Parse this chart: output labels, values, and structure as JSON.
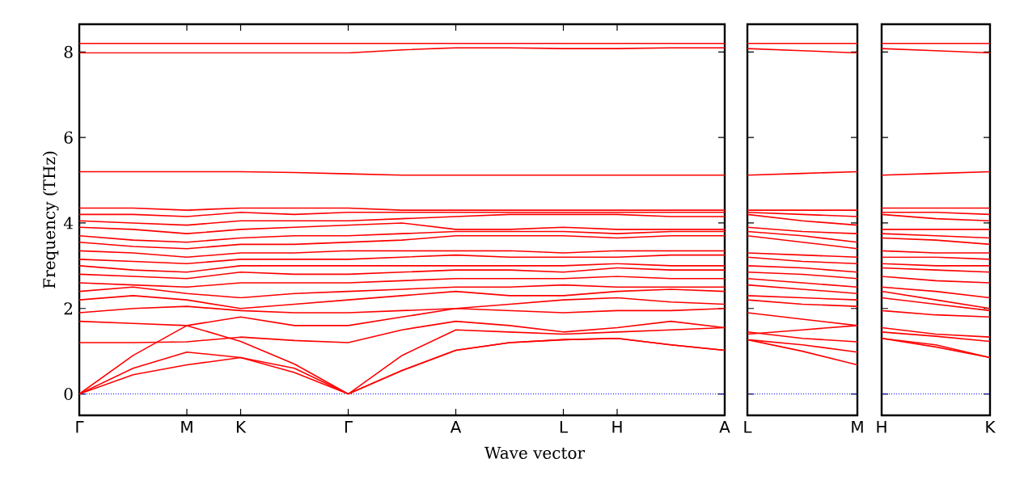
{
  "chart_data": [
    {
      "type": "line",
      "xlabel": "Wave vector",
      "ylabel": "Frequency (THz)",
      "categories": [
        "Γ",
        null,
        "M",
        "K",
        null,
        "Γ",
        null,
        "A",
        null,
        "L",
        "H",
        null,
        "A"
      ],
      "ylim": [
        -0.5,
        8.65
      ],
      "yticks": [
        0,
        2,
        4,
        6,
        8
      ],
      "ref_lines": [
        {
          "axis": "y",
          "value": 0,
          "color": "#0000ff",
          "line_style": "dotted"
        }
      ],
      "series": [
        {
          "color": "#ff0000",
          "values": [
            0,
            0.45,
            0.68,
            0.85,
            0.5,
            0,
            0.55,
            1.02,
            1.2,
            1.27,
            1.3,
            1.15,
            1.02
          ]
        },
        {
          "color": "#ff0000",
          "values": [
            0,
            0.6,
            0.98,
            0.85,
            0.6,
            0,
            0.55,
            1.02,
            1.2,
            1.27,
            1.3,
            1.15,
            1.02
          ]
        },
        {
          "color": "#ff0000",
          "values": [
            0,
            0.9,
            1.6,
            1.23,
            0.7,
            0,
            0.9,
            1.5,
            1.45,
            1.4,
            1.45,
            1.5,
            1.55
          ]
        },
        {
          "color": "#ff0000",
          "values": [
            1.2,
            1.2,
            1.22,
            1.33,
            1.25,
            1.2,
            1.5,
            1.7,
            1.6,
            1.45,
            1.55,
            1.7,
            1.55
          ]
        },
        {
          "color": "#ff0000",
          "values": [
            1.7,
            1.65,
            1.6,
            1.8,
            1.6,
            1.6,
            1.8,
            2.0,
            1.95,
            1.9,
            1.95,
            1.95,
            2.0
          ]
        },
        {
          "color": "#ff0000",
          "values": [
            1.9,
            2.0,
            2.05,
            1.95,
            1.9,
            1.9,
            1.95,
            2.0,
            2.1,
            2.2,
            2.25,
            2.15,
            2.1
          ]
        },
        {
          "color": "#ff0000",
          "values": [
            2.2,
            2.3,
            2.2,
            2.0,
            2.1,
            2.2,
            2.3,
            2.4,
            2.3,
            2.3,
            2.4,
            2.45,
            2.4
          ]
        },
        {
          "color": "#ff0000",
          "values": [
            2.4,
            2.5,
            2.35,
            2.25,
            2.35,
            2.4,
            2.45,
            2.5,
            2.5,
            2.55,
            2.5,
            2.5,
            2.5
          ]
        },
        {
          "color": "#ff0000",
          "values": [
            2.6,
            2.55,
            2.5,
            2.6,
            2.6,
            2.6,
            2.65,
            2.7,
            2.7,
            2.7,
            2.75,
            2.7,
            2.7
          ]
        },
        {
          "color": "#ff0000",
          "values": [
            2.8,
            2.75,
            2.7,
            2.85,
            2.8,
            2.8,
            2.85,
            2.9,
            2.9,
            2.85,
            2.95,
            2.9,
            2.9
          ]
        },
        {
          "color": "#ff0000",
          "values": [
            3.0,
            2.9,
            2.85,
            3.0,
            3.0,
            3.0,
            3.0,
            3.0,
            3.0,
            3.0,
            3.05,
            3.0,
            3.0
          ]
        },
        {
          "color": "#ff0000",
          "values": [
            3.15,
            3.1,
            3.05,
            3.15,
            3.15,
            3.15,
            3.2,
            3.25,
            3.2,
            3.2,
            3.2,
            3.25,
            3.25
          ]
        },
        {
          "color": "#ff0000",
          "values": [
            3.35,
            3.3,
            3.2,
            3.3,
            3.3,
            3.35,
            3.35,
            3.35,
            3.35,
            3.3,
            3.35,
            3.35,
            3.35
          ]
        },
        {
          "color": "#ff0000",
          "values": [
            3.55,
            3.45,
            3.4,
            3.5,
            3.5,
            3.55,
            3.6,
            3.7,
            3.7,
            3.7,
            3.65,
            3.7,
            3.7
          ]
        },
        {
          "color": "#ff0000",
          "values": [
            3.7,
            3.6,
            3.55,
            3.65,
            3.7,
            3.7,
            3.75,
            3.8,
            3.8,
            3.8,
            3.75,
            3.8,
            3.8
          ]
        },
        {
          "color": "#ff0000",
          "values": [
            3.9,
            3.85,
            3.75,
            3.85,
            3.9,
            3.95,
            4.0,
            3.85,
            3.85,
            3.9,
            3.85,
            3.85,
            3.85
          ]
        },
        {
          "color": "#ff0000",
          "values": [
            4.05,
            4.0,
            3.95,
            4.05,
            4.05,
            4.05,
            4.1,
            4.15,
            4.2,
            4.2,
            4.2,
            4.15,
            4.15
          ]
        },
        {
          "color": "#ff0000",
          "values": [
            4.2,
            4.2,
            4.15,
            4.25,
            4.2,
            4.25,
            4.25,
            4.25,
            4.25,
            4.25,
            4.25,
            4.25,
            4.25
          ]
        },
        {
          "color": "#ff0000",
          "values": [
            4.35,
            4.35,
            4.3,
            4.35,
            4.35,
            4.35,
            4.3,
            4.3,
            4.3,
            4.3,
            4.3,
            4.3,
            4.3
          ]
        },
        {
          "color": "#ff0000",
          "values": [
            5.2,
            5.2,
            5.2,
            5.2,
            5.18,
            5.15,
            5.12,
            5.12,
            5.12,
            5.12,
            5.12,
            5.12,
            5.12
          ]
        },
        {
          "color": "#ff0000",
          "values": [
            7.98,
            7.98,
            7.98,
            7.98,
            7.98,
            7.98,
            8.05,
            8.1,
            8.1,
            8.08,
            8.08,
            8.1,
            8.1
          ]
        },
        {
          "color": "#ff0000",
          "values": [
            8.2,
            8.2,
            8.2,
            8.2,
            8.2,
            8.2,
            8.2,
            8.2,
            8.2,
            8.2,
            8.2,
            8.2,
            8.2
          ]
        }
      ]
    },
    {
      "type": "line",
      "tick_labels": "x",
      "categories": [
        "L",
        null,
        "M"
      ],
      "ylim": [
        -0.5,
        8.65
      ],
      "yticks": [
        0,
        2,
        4,
        6,
        8
      ],
      "ref_lines": [
        {
          "axis": "y",
          "value": 0,
          "color": "#0000ff",
          "line_style": "dotted"
        }
      ],
      "series": [
        {
          "color": "#ff0000",
          "values": [
            1.27,
            1.0,
            0.68
          ]
        },
        {
          "color": "#ff0000",
          "values": [
            1.27,
            1.15,
            0.98
          ]
        },
        {
          "color": "#ff0000",
          "values": [
            1.4,
            1.5,
            1.6
          ]
        },
        {
          "color": "#ff0000",
          "values": [
            1.45,
            1.3,
            1.22
          ]
        },
        {
          "color": "#ff0000",
          "values": [
            1.9,
            1.75,
            1.6
          ]
        },
        {
          "color": "#ff0000",
          "values": [
            2.2,
            2.1,
            2.05
          ]
        },
        {
          "color": "#ff0000",
          "values": [
            2.3,
            2.25,
            2.2
          ]
        },
        {
          "color": "#ff0000",
          "values": [
            2.55,
            2.45,
            2.35
          ]
        },
        {
          "color": "#ff0000",
          "values": [
            2.7,
            2.6,
            2.5
          ]
        },
        {
          "color": "#ff0000",
          "values": [
            2.85,
            2.8,
            2.7
          ]
        },
        {
          "color": "#ff0000",
          "values": [
            3.0,
            2.95,
            2.85
          ]
        },
        {
          "color": "#ff0000",
          "values": [
            3.2,
            3.1,
            3.05
          ]
        },
        {
          "color": "#ff0000",
          "values": [
            3.3,
            3.25,
            3.2
          ]
        },
        {
          "color": "#ff0000",
          "values": [
            3.7,
            3.55,
            3.4
          ]
        },
        {
          "color": "#ff0000",
          "values": [
            3.8,
            3.7,
            3.55
          ]
        },
        {
          "color": "#ff0000",
          "values": [
            3.9,
            3.8,
            3.75
          ]
        },
        {
          "color": "#ff0000",
          "values": [
            4.2,
            4.05,
            3.95
          ]
        },
        {
          "color": "#ff0000",
          "values": [
            4.25,
            4.2,
            4.15
          ]
        },
        {
          "color": "#ff0000",
          "values": [
            4.3,
            4.3,
            4.3
          ]
        },
        {
          "color": "#ff0000",
          "values": [
            5.12,
            5.16,
            5.2
          ]
        },
        {
          "color": "#ff0000",
          "values": [
            8.08,
            8.03,
            7.98
          ]
        },
        {
          "color": "#ff0000",
          "values": [
            8.2,
            8.2,
            8.2
          ]
        }
      ]
    },
    {
      "type": "line",
      "tick_labels": "x",
      "categories": [
        "H",
        null,
        "K"
      ],
      "ylim": [
        -0.5,
        8.65
      ],
      "yticks": [
        0,
        2,
        4,
        6,
        8
      ],
      "ref_lines": [
        {
          "axis": "y",
          "value": 0,
          "color": "#0000ff",
          "line_style": "dotted"
        }
      ],
      "series": [
        {
          "color": "#ff0000",
          "values": [
            1.3,
            1.1,
            0.85
          ]
        },
        {
          "color": "#ff0000",
          "values": [
            1.3,
            1.15,
            0.85
          ]
        },
        {
          "color": "#ff0000",
          "values": [
            1.45,
            1.35,
            1.23
          ]
        },
        {
          "color": "#ff0000",
          "values": [
            1.55,
            1.4,
            1.33
          ]
        },
        {
          "color": "#ff0000",
          "values": [
            1.95,
            1.85,
            1.8
          ]
        },
        {
          "color": "#ff0000",
          "values": [
            2.25,
            2.1,
            1.95
          ]
        },
        {
          "color": "#ff0000",
          "values": [
            2.4,
            2.2,
            2.0
          ]
        },
        {
          "color": "#ff0000",
          "values": [
            2.5,
            2.4,
            2.25
          ]
        },
        {
          "color": "#ff0000",
          "values": [
            2.75,
            2.65,
            2.6
          ]
        },
        {
          "color": "#ff0000",
          "values": [
            2.95,
            2.9,
            2.85
          ]
        },
        {
          "color": "#ff0000",
          "values": [
            3.05,
            3.0,
            3.0
          ]
        },
        {
          "color": "#ff0000",
          "values": [
            3.2,
            3.2,
            3.15
          ]
        },
        {
          "color": "#ff0000",
          "values": [
            3.35,
            3.3,
            3.3
          ]
        },
        {
          "color": "#ff0000",
          "values": [
            3.65,
            3.6,
            3.5
          ]
        },
        {
          "color": "#ff0000",
          "values": [
            3.75,
            3.7,
            3.65
          ]
        },
        {
          "color": "#ff0000",
          "values": [
            3.85,
            3.85,
            3.85
          ]
        },
        {
          "color": "#ff0000",
          "values": [
            4.2,
            4.1,
            4.05
          ]
        },
        {
          "color": "#ff0000",
          "values": [
            4.25,
            4.25,
            4.2
          ]
        },
        {
          "color": "#ff0000",
          "values": [
            4.35,
            4.35,
            4.35
          ]
        },
        {
          "color": "#ff0000",
          "values": [
            5.12,
            5.16,
            5.2
          ]
        },
        {
          "color": "#ff0000",
          "values": [
            8.08,
            8.03,
            7.98
          ]
        },
        {
          "color": "#ff0000",
          "values": [
            8.2,
            8.2,
            8.2
          ]
        }
      ]
    }
  ]
}
